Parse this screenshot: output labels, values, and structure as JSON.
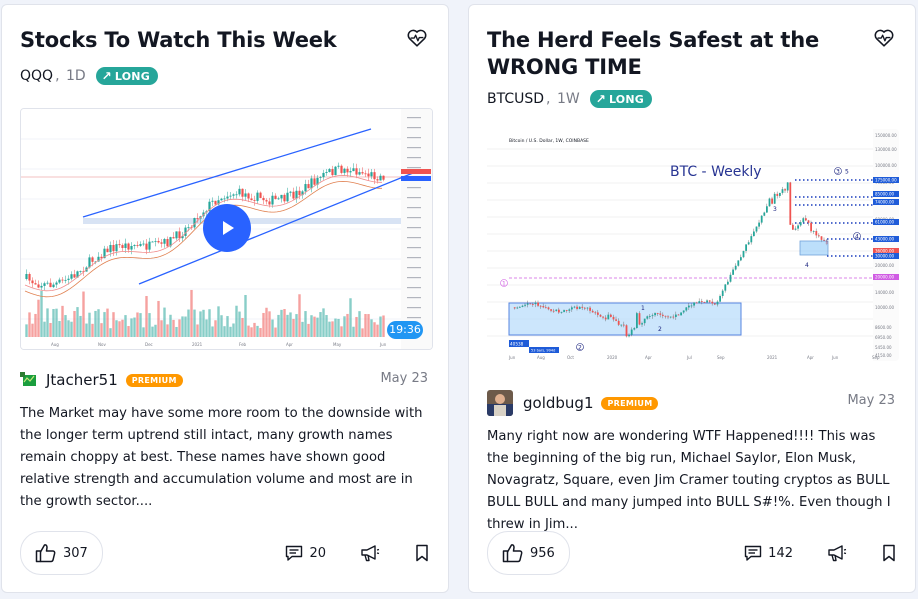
{
  "cards": [
    {
      "title": "Stocks To Watch This Week",
      "symbol": "QQQ",
      "interval": "1D",
      "badge": "LONG",
      "chart": {
        "time_label": "19:36",
        "x_ticks": [
          "Aug",
          "Nov",
          "Dec",
          "2021",
          "Feb",
          "Apr",
          "May",
          "Jun"
        ]
      },
      "author": "Jtacher51",
      "author_badge": "PREMIUM",
      "date": "May 23",
      "description": "The Market may have some more room to the downside with the longer term uptrend still intact, many growth names remain choppy at best. These names have shown good relative strength and accumulation volume and most are in the growth sector....",
      "likes": "307",
      "comments": "20"
    },
    {
      "title": "The Herd Feels Safest at the WRONG TIME",
      "symbol": "BTCUSD",
      "interval": "1W",
      "badge": "LONG",
      "chart": {
        "header": "Bitcoin / U.S. Dollar, 1W, COINBASE",
        "label": "BTC - Weekly",
        "x_ticks": [
          "Jun",
          "Aug",
          "Oct",
          "2020",
          "Apr",
          "Jul",
          "Sep",
          "2021",
          "Apr",
          "Jun",
          "Sep"
        ],
        "y_ticks": [
          "150000.00",
          "130000.00",
          "100000.00",
          "79000.00",
          "60000.00",
          "40000.00",
          "20000.00",
          "14000.00",
          "10000.00",
          "8600.00",
          "6950.00",
          "5450.00",
          "4150.00"
        ],
        "price_tags": [
          "175000.00",
          "85000.00",
          "74000.00",
          "61000.00",
          "43000.00",
          "36000.00",
          "30000.00",
          "20000.00"
        ],
        "wave_labels": [
          "3",
          "5",
          "4",
          "4",
          "2",
          "1",
          "2",
          "1",
          "3"
        ],
        "box_label": "40538",
        "box_sub": "53 bars, 994d"
      },
      "author": "goldbug1",
      "author_badge": "PREMIUM",
      "date": "May 23",
      "description": "Many right now are wondering WTF Happened!!!! This was the beginning of the big run, Michael Saylor, Elon Musk, Novagratz, Square, even Jim Cramer touting cryptos as BULL BULL BULL and many jumped into BULL S#!%. Even though I threw in Jim...",
      "likes": "956",
      "comments": "142"
    }
  ],
  "colors": {
    "accent": "#2962ff",
    "long": "#26a69a",
    "premium": "#ff9800",
    "bull": "#26a69a",
    "bear": "#ef5350"
  }
}
